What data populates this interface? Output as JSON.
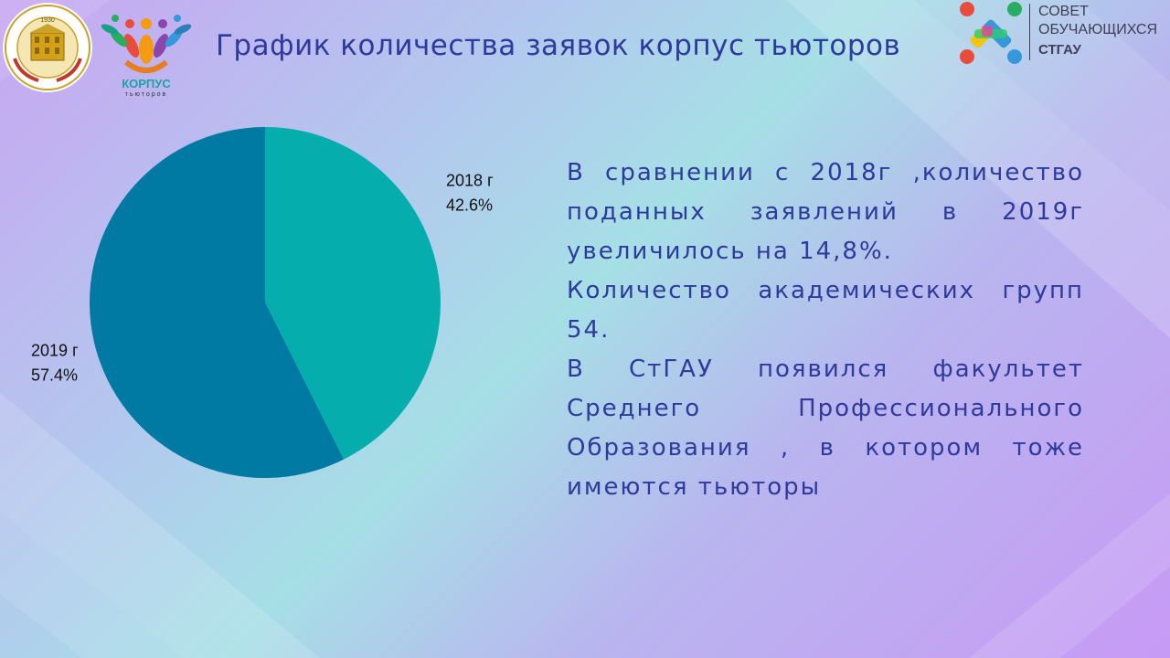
{
  "title": "График количества заявок корпус тьюторов",
  "logos": {
    "university_ring_text": "СТАВРОПОЛЬСКИЙ ГОСУДАРСТВЕННЫЙ АГРАРНЫЙ УНИВЕРСИТЕТ",
    "university_year": "1930",
    "corpus_name": "КОРПУС",
    "corpus_sub": "тьюторов",
    "council_line1": "СОВЕТ",
    "council_line2": "ОБУЧАЮЩИХСЯ",
    "council_line3": "СТГАУ"
  },
  "chart_data": {
    "type": "pie",
    "title": "",
    "slices": [
      {
        "label": "2018 г",
        "value": 42.6,
        "value_label": "42.6%",
        "color": "#05aeac"
      },
      {
        "label": "2019 г",
        "value": 57.4,
        "value_label": "57.4%",
        "color": "#0079a3"
      }
    ],
    "start_angle_deg": 0,
    "direction": "clockwise"
  },
  "paragraphs": [
    "В сравнении с 2018г ,количество поданных заявлений в 2019г увеличилось на 14,8%.",
    "Количество академических групп 54.",
    "В СтГАУ появился факультет Среднего Профессионального Образования , в котором тоже имеются тьюторы"
  ],
  "colors": {
    "title": "#2e3a9c",
    "text": "#2e3a9c",
    "slice_2018": "#05aeac",
    "slice_2019": "#0079a3"
  }
}
